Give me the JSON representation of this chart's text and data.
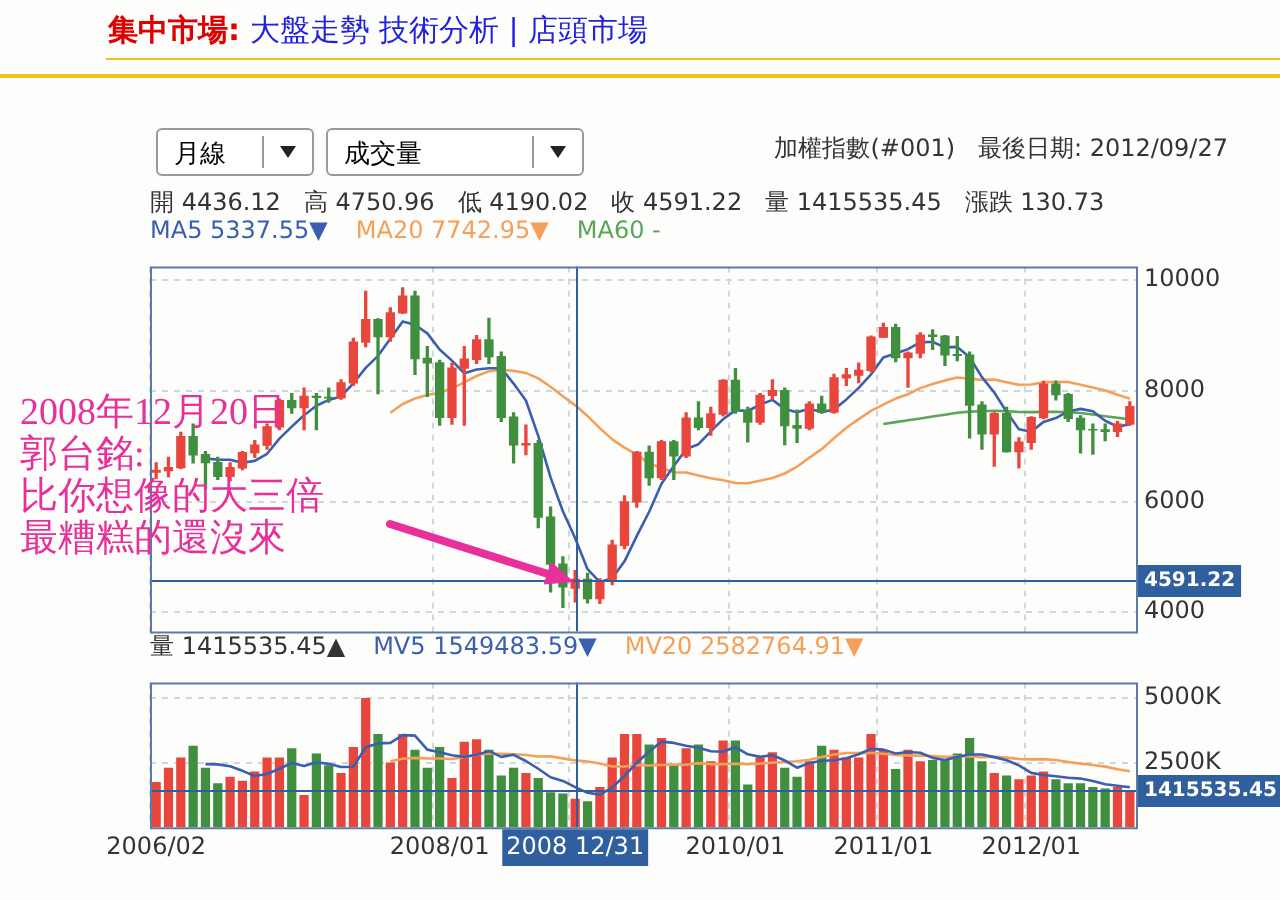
{
  "chart_data": [
    {
      "type": "candlestick",
      "title": "集中市場:",
      "subtitle": "大盤走勢 技術分析 | 店頭市場",
      "annotations": [
        "月線",
        "成交量",
        "加權指數(#001)",
        "最後日期: 2012/09/27",
        "開 4436.12   高 4750.96   低 4190.02   收 4591.22   量 1415535.45   漲跌 130.73",
        "2008年12月20日",
        "郭台銘:",
        "比你想像的大三倍",
        "最糟糕的還沒來"
      ],
      "categories": [
        "2006/02",
        null,
        null,
        null,
        null,
        null,
        null,
        null,
        null,
        null,
        null,
        null,
        null,
        null,
        null,
        null,
        null,
        null,
        null,
        null,
        null,
        null,
        null,
        "2008/01",
        null,
        null,
        null,
        null,
        null,
        null,
        null,
        null,
        null,
        null,
        "2008 12/31",
        null,
        null,
        null,
        null,
        null,
        null,
        null,
        null,
        null,
        null,
        null,
        null,
        "2010/01",
        null,
        null,
        null,
        null,
        null,
        null,
        null,
        null,
        null,
        null,
        null,
        "2011/01",
        null,
        null,
        null,
        null,
        null,
        null,
        null,
        null,
        null,
        null,
        null,
        "2012/01",
        null,
        null,
        null,
        null,
        null,
        null,
        null,
        null
      ],
      "ohlc": [
        [
          6532,
          6700,
          6420,
          6561
        ],
        [
          6561,
          6800,
          6450,
          6613
        ],
        [
          6613,
          7250,
          6600,
          7171
        ],
        [
          7171,
          7400,
          6700,
          6846
        ],
        [
          6846,
          6900,
          6230,
          6704
        ],
        [
          6704,
          6800,
          6400,
          6455
        ],
        [
          6455,
          6700,
          6380,
          6611
        ],
        [
          6611,
          6900,
          6580,
          6883
        ],
        [
          6883,
          7100,
          6800,
          7021
        ],
        [
          7021,
          7400,
          6950,
          7351
        ],
        [
          7351,
          7850,
          7300,
          7823
        ],
        [
          7823,
          7950,
          7600,
          7699
        ],
        [
          7699,
          8050,
          7300,
          7902
        ],
        [
          7902,
          7950,
          7300,
          7884
        ],
        [
          7884,
          8050,
          7800,
          7875
        ],
        [
          7875,
          8200,
          7850,
          8145
        ],
        [
          8145,
          8950,
          8100,
          8883
        ],
        [
          8883,
          9800,
          8800,
          9287
        ],
        [
          9287,
          9300,
          7950,
          8982
        ],
        [
          8982,
          9500,
          8900,
          9411
        ],
        [
          9411,
          9860,
          9400,
          9711
        ],
        [
          9711,
          9800,
          8300,
          8586
        ],
        [
          8586,
          8800,
          7900,
          8506
        ],
        [
          8506,
          8550,
          7380,
          7521
        ],
        [
          7521,
          8500,
          7400,
          8412
        ],
        [
          8412,
          8800,
          7380,
          8572
        ],
        [
          8572,
          9000,
          8500,
          8920
        ],
        [
          8920,
          9310,
          8500,
          8619
        ],
        [
          8619,
          8700,
          7450,
          7524
        ],
        [
          7524,
          7600,
          6700,
          7024
        ],
        [
          7024,
          7380,
          6850,
          7046
        ],
        [
          7046,
          7100,
          5530,
          5719
        ],
        [
          5719,
          5900,
          4370,
          4870
        ],
        [
          4870,
          5000,
          4090,
          4460
        ],
        [
          4436.12,
          4750.96,
          4190.02,
          4591.22
        ],
        [
          4591,
          4700,
          4170,
          4248
        ],
        [
          4248,
          4600,
          4160,
          4557
        ],
        [
          4557,
          5300,
          4500,
          5210
        ],
        [
          5210,
          6100,
          5150,
          5993
        ],
        [
          5993,
          6900,
          5900,
          6890
        ],
        [
          6890,
          7000,
          6300,
          6432
        ],
        [
          6432,
          7100,
          6400,
          7078
        ],
        [
          7078,
          7100,
          6400,
          6826
        ],
        [
          6826,
          7600,
          6800,
          7509
        ],
        [
          7509,
          7800,
          7300,
          7340
        ],
        [
          7340,
          7700,
          7200,
          7582
        ],
        [
          7582,
          8200,
          7550,
          8188
        ],
        [
          8188,
          8400,
          7600,
          7640
        ],
        [
          7640,
          7700,
          7080,
          7436
        ],
        [
          7436,
          7950,
          7400,
          7920
        ],
        [
          7920,
          8200,
          7850,
          8004
        ],
        [
          8004,
          8050,
          7030,
          7374
        ],
        [
          7374,
          7650,
          7070,
          7329
        ],
        [
          7329,
          7800,
          7300,
          7760
        ],
        [
          7760,
          7900,
          7600,
          7616
        ],
        [
          7616,
          8300,
          7600,
          8237
        ],
        [
          8237,
          8400,
          8100,
          8287
        ],
        [
          8287,
          8500,
          8150,
          8372
        ],
        [
          8372,
          8990,
          8350,
          8973
        ],
        [
          8973,
          9220,
          8970,
          9145
        ],
        [
          9145,
          9200,
          8530,
          8600
        ],
        [
          8600,
          8700,
          8070,
          8683
        ],
        [
          8683,
          9050,
          8600,
          9008
        ],
        [
          9008,
          9100,
          8750,
          8988
        ],
        [
          8988,
          9000,
          8460,
          8653
        ],
        [
          8653,
          8980,
          8550,
          8644
        ],
        [
          8644,
          8700,
          7150,
          7742
        ],
        [
          7742,
          7800,
          6950,
          7225
        ],
        [
          7225,
          7600,
          6640,
          7588
        ],
        [
          7588,
          7700,
          6900,
          6904
        ],
        [
          6904,
          7150,
          6610,
          7072
        ],
        [
          7072,
          7530,
          6950,
          7517
        ],
        [
          7517,
          8170,
          7500,
          8121
        ],
        [
          8121,
          8170,
          7840,
          7933
        ],
        [
          7933,
          7950,
          7450,
          7502
        ],
        [
          7502,
          7550,
          6880,
          7301
        ],
        [
          7301,
          7400,
          6860,
          7297
        ],
        [
          7297,
          7400,
          7100,
          7270
        ],
        [
          7270,
          7450,
          7180,
          7398
        ],
        [
          7398,
          7800,
          7380,
          7715
        ]
      ],
      "colors": [
        "#e8463c",
        "#e8463c",
        "#e8463c",
        "#3f8f3f",
        "#3f8f3f",
        "#3f8f3f",
        "#e8463c",
        "#e8463c",
        "#e8463c",
        "#e8463c",
        "#e8463c",
        "#3f8f3f",
        "#e8463c",
        "#3f8f3f",
        "#3f8f3f",
        "#e8463c",
        "#e8463c",
        "#e8463c",
        "#3f8f3f",
        "#e8463c",
        "#e8463c",
        "#3f8f3f",
        "#3f8f3f",
        "#3f8f3f",
        "#e8463c",
        "#e8463c",
        "#e8463c",
        "#3f8f3f",
        "#3f8f3f",
        "#3f8f3f",
        "#e8463c",
        "#3f8f3f",
        "#3f8f3f",
        "#3f8f3f",
        "#e8463c",
        "#3f8f3f",
        "#e8463c",
        "#e8463c",
        "#e8463c",
        "#e8463c",
        "#3f8f3f",
        "#e8463c",
        "#3f8f3f",
        "#e8463c",
        "#3f8f3f",
        "#e8463c",
        "#e8463c",
        "#3f8f3f",
        "#3f8f3f",
        "#e8463c",
        "#e8463c",
        "#3f8f3f",
        "#3f8f3f",
        "#e8463c",
        "#3f8f3f",
        "#e8463c",
        "#e8463c",
        "#e8463c",
        "#e8463c",
        "#e8463c",
        "#3f8f3f",
        "#e8463c",
        "#e8463c",
        "#3f8f3f",
        "#3f8f3f",
        "#3f8f3f",
        "#3f8f3f",
        "#3f8f3f",
        "#e8463c",
        "#3f8f3f",
        "#e8463c",
        "#e8463c",
        "#e8463c",
        "#3f8f3f",
        "#3f8f3f",
        "#3f8f3f",
        "#3f8f3f",
        "#3f8f3f",
        "#e8463c",
        "#e8463c"
      ],
      "series": [
        {
          "type": "line",
          "name": "MA5 5337.55▼",
          "color": "#3a5fb0",
          "values": [
            null,
            null,
            null,
            null,
            6779,
            6758,
            6757,
            6700,
            6735,
            6864,
            7138,
            7355,
            7559,
            7732,
            7837,
            7901,
            8138,
            8415,
            8634,
            8942,
            9255,
            9195,
            9039,
            8747,
            8547,
            8319,
            8386,
            8409,
            8409,
            8132,
            7827,
            7186,
            6437,
            5824,
            5337,
            4778,
            4545,
            4613,
            4920,
            5380,
            5816,
            6321,
            6644,
            6947,
            7037,
            7267,
            7489,
            7652,
            7637,
            7753,
            7838,
            7675,
            7613,
            7677,
            7617,
            7663,
            7846,
            8054,
            8297,
            8603,
            8675,
            8755,
            8882,
            8885,
            8786,
            8795,
            8607,
            8250,
            7970,
            7621,
            7306,
            7261,
            7440,
            7509,
            7629,
            7675,
            7631,
            7461,
            7354,
            7396
          ]
        },
        {
          "type": "line",
          "name": "MA20 7742.95▼",
          "color": "#f5a05a",
          "values": [
            null,
            null,
            null,
            null,
            null,
            null,
            null,
            null,
            null,
            null,
            null,
            null,
            null,
            null,
            null,
            null,
            null,
            null,
            null,
            7605,
            7763,
            7862,
            7928,
            7962,
            8047,
            8153,
            8269,
            8356,
            8381,
            8364,
            8325,
            8226,
            8075,
            7904,
            7739,
            7545,
            7328,
            7124,
            6975,
            6849,
            6685,
            6610,
            6526,
            6525,
            6471,
            6422,
            6385,
            6336,
            6332,
            6377,
            6425,
            6507,
            6630,
            6795,
            6947,
            7146,
            7333,
            7491,
            7640,
            7752,
            7861,
            7941,
            8050,
            8124,
            8190,
            8243,
            8221,
            8200,
            8207,
            8157,
            8110,
            8117,
            8157,
            8165,
            8160,
            8113,
            8063,
            8008,
            7930,
            7858
          ]
        },
        {
          "type": "line",
          "name": "MA60 -",
          "color": "#5aa55a",
          "values": [
            null,
            null,
            null,
            null,
            null,
            null,
            null,
            null,
            null,
            null,
            null,
            null,
            null,
            null,
            null,
            null,
            null,
            null,
            null,
            null,
            null,
            null,
            null,
            null,
            null,
            null,
            null,
            null,
            null,
            null,
            null,
            null,
            null,
            null,
            null,
            null,
            null,
            null,
            null,
            null,
            null,
            null,
            null,
            null,
            null,
            null,
            null,
            null,
            null,
            null,
            null,
            null,
            null,
            null,
            null,
            null,
            null,
            null,
            null,
            7402,
            7436,
            7471,
            7501,
            7537,
            7570,
            7606,
            7625,
            7631,
            7640,
            7633,
            7620,
            7617,
            7621,
            7621,
            7615,
            7601,
            7575,
            7541,
            7515,
            7486
          ]
        }
      ],
      "ylim": [
        3650,
        10250
      ],
      "yticks": [
        4000,
        6000,
        8000,
        10000
      ],
      "grid": true,
      "legend": "top",
      "marker": "none",
      "tick_labels": "y",
      "ref_lines": [
        {
          "axis": "x",
          "value": "2008 12/31",
          "color": "#2f5f9f"
        },
        {
          "axis": "y",
          "value": 4591.22,
          "label": "4591.22",
          "color": "#2f5f9f"
        }
      ]
    },
    {
      "type": "bar",
      "categories": [
        "2006/02",
        null,
        null,
        null,
        null,
        null,
        null,
        null,
        null,
        null,
        null,
        null,
        null,
        null,
        null,
        null,
        null,
        null,
        null,
        null,
        null,
        null,
        null,
        "2008/01",
        null,
        null,
        null,
        null,
        null,
        null,
        null,
        null,
        null,
        null,
        "2008 12/31",
        null,
        null,
        null,
        null,
        null,
        null,
        null,
        null,
        null,
        null,
        null,
        null,
        "2010/01",
        null,
        null,
        null,
        null,
        null,
        null,
        null,
        null,
        null,
        null,
        null,
        "2011/01",
        null,
        null,
        null,
        null,
        null,
        null,
        null,
        null,
        null,
        null,
        null,
        "2012/01",
        null,
        null,
        null,
        null,
        null,
        null,
        null,
        null
      ],
      "series": [
        {
          "name": "量 1415535.45▲",
          "values": [
            1750,
            2300,
            2700,
            3150,
            2300,
            1700,
            1950,
            1800,
            2150,
            2700,
            2700,
            3050,
            1250,
            2850,
            2400,
            2100,
            3100,
            5000,
            3600,
            2500,
            3600,
            3000,
            2300,
            3100,
            1900,
            3300,
            3400,
            3000,
            2000,
            2300,
            2100,
            1900,
            1350,
            1300,
            1100,
            1000,
            1550,
            2700,
            3600,
            3600,
            3200,
            3450,
            2450,
            3050,
            3200,
            2550,
            3350,
            3350,
            1650,
            2700,
            2900,
            2300,
            1950,
            2550,
            3150,
            3000,
            2700,
            2700,
            3600,
            3000,
            2250,
            3000,
            2550,
            2600,
            2600,
            2850,
            3450,
            2550,
            2100,
            2000,
            1850,
            2000,
            2150,
            1850,
            1700,
            1700,
            1550,
            1500,
            1550,
            1415.53545
          ],
          "colors": [
            "#e8463c",
            "#e8463c",
            "#e8463c",
            "#3f8f3f",
            "#3f8f3f",
            "#3f8f3f",
            "#e8463c",
            "#e8463c",
            "#e8463c",
            "#e8463c",
            "#e8463c",
            "#3f8f3f",
            "#e8463c",
            "#3f8f3f",
            "#3f8f3f",
            "#e8463c",
            "#e8463c",
            "#e8463c",
            "#3f8f3f",
            "#e8463c",
            "#e8463c",
            "#3f8f3f",
            "#3f8f3f",
            "#3f8f3f",
            "#e8463c",
            "#e8463c",
            "#e8463c",
            "#3f8f3f",
            "#3f8f3f",
            "#3f8f3f",
            "#e8463c",
            "#3f8f3f",
            "#3f8f3f",
            "#3f8f3f",
            "#e8463c",
            "#3f8f3f",
            "#e8463c",
            "#e8463c",
            "#e8463c",
            "#e8463c",
            "#3f8f3f",
            "#e8463c",
            "#3f8f3f",
            "#e8463c",
            "#3f8f3f",
            "#e8463c",
            "#e8463c",
            "#3f8f3f",
            "#3f8f3f",
            "#e8463c",
            "#e8463c",
            "#3f8f3f",
            "#3f8f3f",
            "#e8463c",
            "#3f8f3f",
            "#e8463c",
            "#e8463c",
            "#e8463c",
            "#e8463c",
            "#e8463c",
            "#3f8f3f",
            "#e8463c",
            "#e8463c",
            "#3f8f3f",
            "#3f8f3f",
            "#3f8f3f",
            "#3f8f3f",
            "#3f8f3f",
            "#e8463c",
            "#3f8f3f",
            "#e8463c",
            "#e8463c",
            "#e8463c",
            "#3f8f3f",
            "#3f8f3f",
            "#3f8f3f",
            "#3f8f3f",
            "#3f8f3f",
            "#e8463c",
            "#e8463c"
          ]
        },
        {
          "type": "line",
          "name": "MV5 1549483.59▼",
          "color": "#3a5fb0",
          "values": [
            null,
            null,
            null,
            null,
            2440,
            2430,
            2360,
            2180,
            1980,
            2060,
            2260,
            2480,
            2370,
            2510,
            2450,
            2330,
            2340,
            3090,
            3240,
            3260,
            3560,
            3540,
            3000,
            2900,
            2780,
            2720,
            2800,
            2940,
            2720,
            2800,
            2560,
            2260,
            1930,
            1790,
            1550,
            1330,
            1260,
            1530,
            1990,
            2490,
            2930,
            3310,
            3260,
            3150,
            3070,
            2940,
            2920,
            3100,
            2820,
            2720,
            2790,
            2580,
            2300,
            2480,
            2570,
            2590,
            2670,
            2820,
            3030,
            3000,
            2850,
            2910,
            2880,
            2680,
            2600,
            2720,
            2810,
            2810,
            2710,
            2590,
            2390,
            2100,
            2020,
            1970,
            1910,
            1880,
            1790,
            1660,
            1600,
            1543
          ]
        },
        {
          "type": "line",
          "name": "MV20 2582764.91▼",
          "color": "#f5a05a",
          "values": [
            null,
            null,
            null,
            null,
            null,
            null,
            null,
            null,
            null,
            null,
            null,
            null,
            null,
            null,
            null,
            null,
            null,
            null,
            null,
            2553,
            2645,
            2680,
            2660,
            2658,
            2638,
            2718,
            2790,
            2850,
            2843,
            2823,
            2793,
            2735,
            2740,
            2663,
            2583,
            2543,
            2465,
            2350,
            2350,
            2405,
            2385,
            2408,
            2415,
            2413,
            2478,
            2440,
            2438,
            2455,
            2438,
            2458,
            2498,
            2518,
            2548,
            2610,
            2713,
            2813,
            2870,
            2870,
            2870,
            2840,
            2793,
            2770,
            2775,
            2753,
            2723,
            2738,
            2743,
            2703,
            2725,
            2690,
            2638,
            2623,
            2633,
            2598,
            2525,
            2460,
            2403,
            2343,
            2240,
            2161
          ]
        }
      ],
      "ylim": [
        0,
        5600
      ],
      "yticks": [
        {
          "value": 2500,
          "label": "2500K"
        },
        {
          "value": 5000,
          "label": "5000K"
        }
      ],
      "grid": true,
      "legend": "top",
      "marker": "none",
      "ref_lines": [
        {
          "axis": "x",
          "value": "2008 12/31",
          "color": "#2f5f9f"
        },
        {
          "axis": "y",
          "value": 1415.53545,
          "label": "1415535.45",
          "color": "#2f5f9f"
        }
      ]
    }
  ]
}
